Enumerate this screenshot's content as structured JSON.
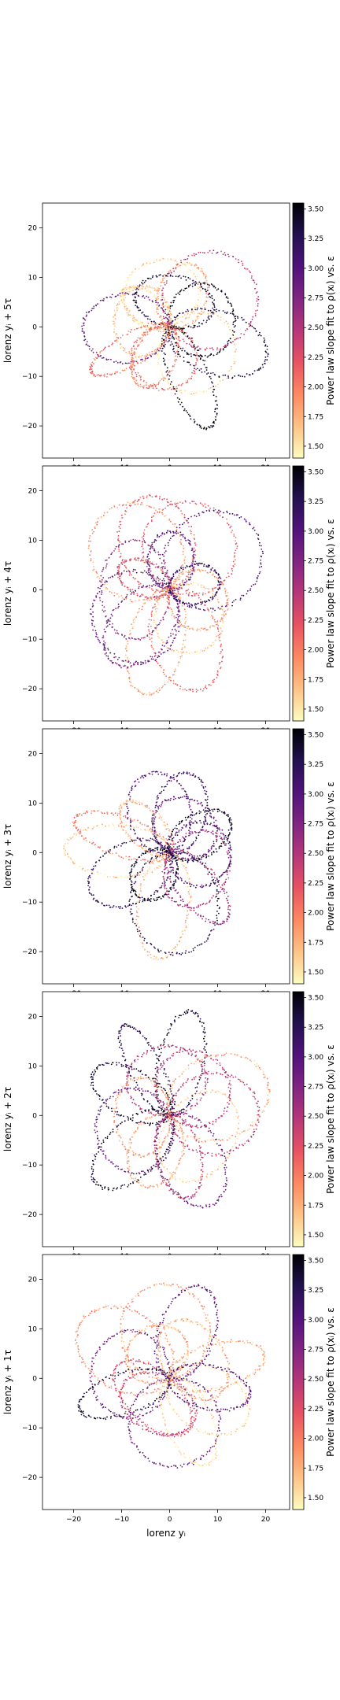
{
  "figure": {
    "xlabel": "lorenz yᵢ",
    "colorbar_label": "Power law slope fit to ρ(xᵢ) vs. ε",
    "colorbar_ticks": [
      1.5,
      1.75,
      2.0,
      2.25,
      2.5,
      2.75,
      3.0,
      3.25,
      3.5
    ],
    "colorbar_range": [
      1.4,
      3.55
    ],
    "colormap": "magma_r",
    "colormap_stops": [
      "#fcfdbf",
      "#fec287",
      "#fc8961",
      "#e85362",
      "#b73779",
      "#802582",
      "#51127c",
      "#221150",
      "#000004"
    ]
  },
  "chart_data": [
    {
      "type": "scatter",
      "panel": 1,
      "ylabel": "lorenz yᵢ + 5τ",
      "xlim": [
        -26.5,
        25
      ],
      "ylim": [
        -26.5,
        25
      ],
      "xticks": [
        -20,
        -10,
        0,
        10,
        20
      ],
      "yticks": [
        -20,
        -10,
        0,
        10,
        20
      ],
      "grid": false,
      "color_by": "power-law slope",
      "point_count_estimate": 2000,
      "x_extent": [
        -24,
        22
      ],
      "y_extent": [
        -24,
        22
      ]
    },
    {
      "type": "scatter",
      "panel": 2,
      "ylabel": "lorenz yᵢ + 4τ",
      "xlim": [
        -26.5,
        25
      ],
      "ylim": [
        -26.5,
        25
      ],
      "xticks": [
        -20,
        -10,
        0,
        10,
        20
      ],
      "yticks": [
        -20,
        -10,
        0,
        10,
        20
      ],
      "grid": false,
      "color_by": "power-law slope",
      "point_count_estimate": 2000,
      "x_extent": [
        -24,
        23
      ],
      "y_extent": [
        -24,
        22
      ]
    },
    {
      "type": "scatter",
      "panel": 3,
      "ylabel": "lorenz yᵢ + 3τ",
      "xlim": [
        -26.5,
        25
      ],
      "ylim": [
        -26.5,
        25
      ],
      "xticks": [
        -20,
        -10,
        0,
        10,
        20
      ],
      "yticks": [
        -20,
        -10,
        0,
        10,
        20
      ],
      "grid": false,
      "color_by": "power-law slope",
      "point_count_estimate": 2000,
      "x_extent": [
        -24,
        23
      ],
      "y_extent": [
        -24,
        22
      ]
    },
    {
      "type": "scatter",
      "panel": 4,
      "ylabel": "lorenz yᵢ + 2τ",
      "xlim": [
        -26.5,
        25
      ],
      "ylim": [
        -26.5,
        25
      ],
      "xticks": [
        -20,
        -10,
        0,
        10,
        20
      ],
      "yticks": [
        -20,
        -10,
        0,
        10,
        20
      ],
      "grid": false,
      "color_by": "power-law slope",
      "point_count_estimate": 2000,
      "x_extent": [
        -24,
        23
      ],
      "y_extent": [
        -24,
        22
      ]
    },
    {
      "type": "scatter",
      "panel": 5,
      "ylabel": "lorenz yᵢ + 1τ",
      "xlim": [
        -26.5,
        25
      ],
      "ylim": [
        -26.5,
        25
      ],
      "xticks": [
        -20,
        -10,
        0,
        10,
        20
      ],
      "yticks": [
        -20,
        -10,
        0,
        10,
        20
      ],
      "grid": false,
      "color_by": "power-law slope",
      "point_count_estimate": 2000,
      "x_extent": [
        -24,
        23
      ],
      "y_extent": [
        -24,
        22
      ]
    }
  ]
}
